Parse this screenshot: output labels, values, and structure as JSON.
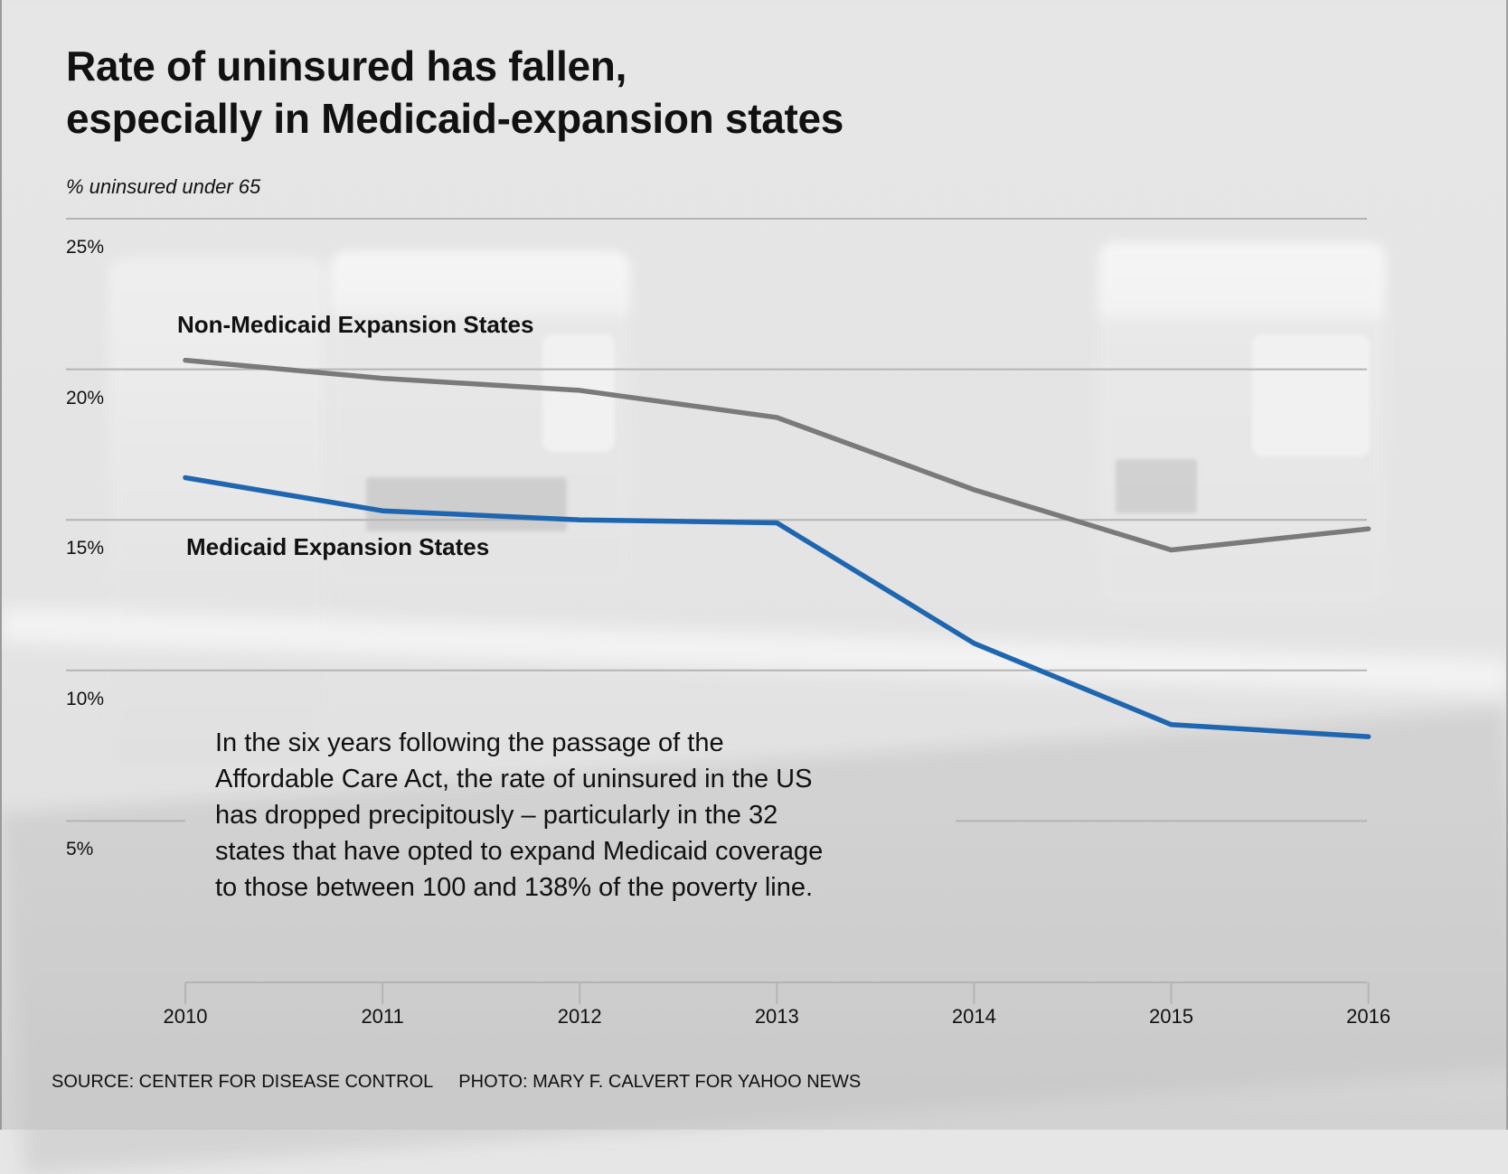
{
  "chart_data": {
    "type": "line",
    "title": "Rate of uninsured has fallen, especially in Medicaid-expansion states",
    "title_lines": [
      "Rate of uninsured has fallen,",
      "especially in Medicaid-expansion states"
    ],
    "subtitle": "% uninsured under 65",
    "xlabel": "",
    "ylabel": "% uninsured under 65",
    "x": [
      "2010",
      "2011",
      "2012",
      "2013",
      "2014",
      "2015",
      "2016"
    ],
    "ylim": [
      0,
      25
    ],
    "yticks": [
      25,
      20,
      15,
      10,
      5
    ],
    "ytick_labels": [
      "25%",
      "20%",
      "15%",
      "10%",
      "5%"
    ],
    "grid": true,
    "series": [
      {
        "name": "Non-Medicaid Expansion States",
        "color": "#7a7a7a",
        "values": [
          20.3,
          19.7,
          19.3,
          18.4,
          16.0,
          14.0,
          14.7
        ]
      },
      {
        "name": "Medicaid Expansion States",
        "color": "#1f66b0",
        "values": [
          16.4,
          15.3,
          15.0,
          14.9,
          10.9,
          8.2,
          7.8
        ]
      }
    ],
    "annotation": "In the six years following the passage of the Affordable Care Act, the rate of uninsured in the US has dropped precipitously – particularly in the 32 states that have opted to expand Medicaid coverage to those between 100 and 138% of the poverty line.",
    "annotation_lines": [
      "In the six years following the passage of the",
      "Affordable Care Act, the rate of uninsured in the US",
      "has dropped precipitously – particularly in the 32",
      "states that have opted to expand Medicaid coverage",
      "to those between 100 and 138% of the poverty line."
    ]
  },
  "footer": {
    "source": "SOURCE: CENTER FOR DISEASE CONTROL",
    "photo": "PHOTO: MARY F. CALVERT FOR YAHOO NEWS"
  }
}
